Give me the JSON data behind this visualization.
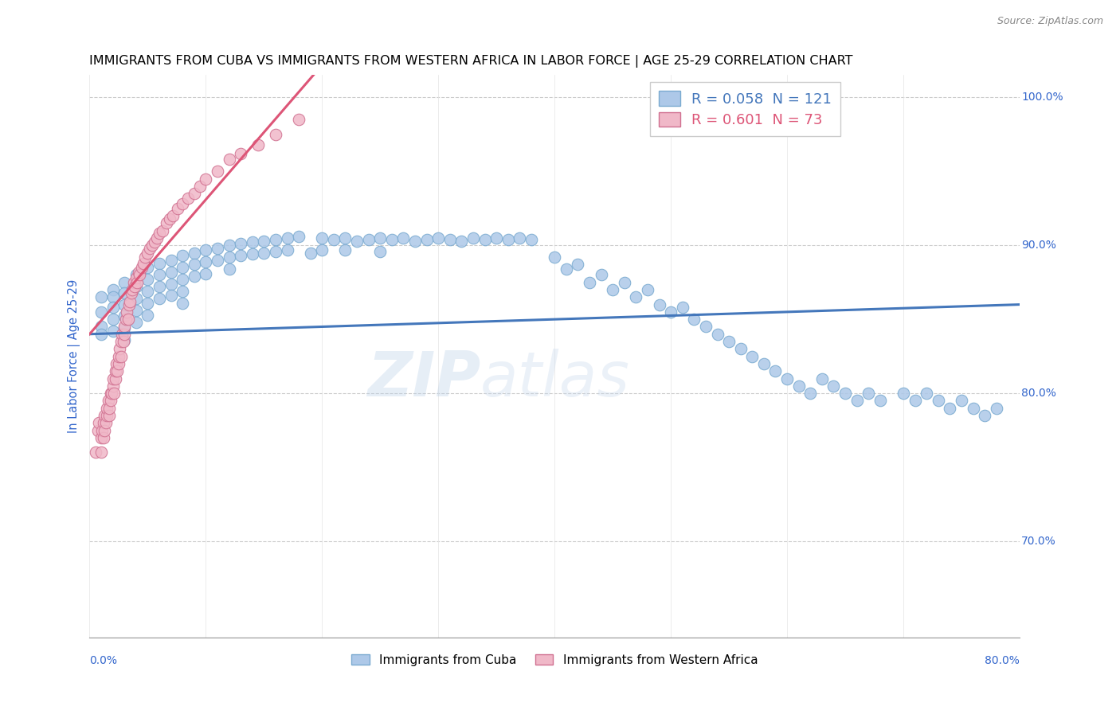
{
  "title": "IMMIGRANTS FROM CUBA VS IMMIGRANTS FROM WESTERN AFRICA IN LABOR FORCE | AGE 25-29 CORRELATION CHART",
  "source": "Source: ZipAtlas.com",
  "ylabel": "In Labor Force | Age 25-29",
  "xlim": [
    0.0,
    0.8
  ],
  "ylim": [
    0.635,
    1.015
  ],
  "cuba_color": "#adc8e8",
  "cuba_edge": "#7aaad0",
  "wa_color": "#f0b8c8",
  "wa_edge": "#d07090",
  "cuba_line_color": "#4477bb",
  "wa_line_color": "#dd5577",
  "cuba_R": 0.058,
  "cuba_N": 121,
  "wa_R": 0.601,
  "wa_N": 73,
  "cuba_scatter_x": [
    0.01,
    0.01,
    0.01,
    0.01,
    0.02,
    0.02,
    0.02,
    0.02,
    0.02,
    0.03,
    0.03,
    0.03,
    0.03,
    0.03,
    0.03,
    0.04,
    0.04,
    0.04,
    0.04,
    0.04,
    0.05,
    0.05,
    0.05,
    0.05,
    0.05,
    0.06,
    0.06,
    0.06,
    0.06,
    0.07,
    0.07,
    0.07,
    0.07,
    0.08,
    0.08,
    0.08,
    0.08,
    0.08,
    0.09,
    0.09,
    0.09,
    0.1,
    0.1,
    0.1,
    0.11,
    0.11,
    0.12,
    0.12,
    0.12,
    0.13,
    0.13,
    0.14,
    0.14,
    0.15,
    0.15,
    0.16,
    0.16,
    0.17,
    0.17,
    0.18,
    0.19,
    0.2,
    0.2,
    0.21,
    0.22,
    0.22,
    0.23,
    0.24,
    0.25,
    0.25,
    0.26,
    0.27,
    0.28,
    0.29,
    0.3,
    0.31,
    0.32,
    0.33,
    0.34,
    0.35,
    0.36,
    0.37,
    0.38,
    0.4,
    0.41,
    0.42,
    0.43,
    0.44,
    0.45,
    0.46,
    0.47,
    0.48,
    0.49,
    0.5,
    0.51,
    0.52,
    0.53,
    0.54,
    0.55,
    0.56,
    0.57,
    0.58,
    0.59,
    0.6,
    0.61,
    0.62,
    0.63,
    0.64,
    0.65,
    0.66,
    0.67,
    0.68,
    0.7,
    0.71,
    0.72,
    0.73,
    0.74,
    0.75,
    0.76,
    0.77,
    0.78
  ],
  "cuba_scatter_y": [
    0.865,
    0.855,
    0.845,
    0.84,
    0.87,
    0.865,
    0.858,
    0.85,
    0.842,
    0.875,
    0.868,
    0.86,
    0.852,
    0.844,
    0.836,
    0.88,
    0.872,
    0.864,
    0.856,
    0.848,
    0.885,
    0.877,
    0.869,
    0.861,
    0.853,
    0.888,
    0.88,
    0.872,
    0.864,
    0.89,
    0.882,
    0.874,
    0.866,
    0.893,
    0.885,
    0.877,
    0.869,
    0.861,
    0.895,
    0.887,
    0.879,
    0.897,
    0.889,
    0.881,
    0.898,
    0.89,
    0.9,
    0.892,
    0.884,
    0.901,
    0.893,
    0.902,
    0.894,
    0.903,
    0.895,
    0.904,
    0.896,
    0.905,
    0.897,
    0.906,
    0.895,
    0.905,
    0.897,
    0.904,
    0.905,
    0.897,
    0.903,
    0.904,
    0.905,
    0.896,
    0.904,
    0.905,
    0.903,
    0.904,
    0.905,
    0.904,
    0.903,
    0.905,
    0.904,
    0.905,
    0.904,
    0.905,
    0.904,
    0.892,
    0.884,
    0.887,
    0.875,
    0.88,
    0.87,
    0.875,
    0.865,
    0.87,
    0.86,
    0.855,
    0.858,
    0.85,
    0.845,
    0.84,
    0.835,
    0.83,
    0.825,
    0.82,
    0.815,
    0.81,
    0.805,
    0.8,
    0.81,
    0.805,
    0.8,
    0.795,
    0.8,
    0.795,
    0.8,
    0.795,
    0.8,
    0.795,
    0.79,
    0.795,
    0.79,
    0.785,
    0.79
  ],
  "wa_scatter_x": [
    0.005,
    0.007,
    0.008,
    0.01,
    0.01,
    0.011,
    0.012,
    0.012,
    0.013,
    0.013,
    0.014,
    0.015,
    0.015,
    0.016,
    0.017,
    0.017,
    0.018,
    0.018,
    0.019,
    0.02,
    0.02,
    0.021,
    0.022,
    0.022,
    0.023,
    0.024,
    0.025,
    0.025,
    0.026,
    0.027,
    0.027,
    0.028,
    0.029,
    0.03,
    0.03,
    0.031,
    0.032,
    0.033,
    0.034,
    0.035,
    0.036,
    0.037,
    0.038,
    0.039,
    0.04,
    0.041,
    0.042,
    0.043,
    0.045,
    0.046,
    0.048,
    0.05,
    0.052,
    0.054,
    0.056,
    0.058,
    0.06,
    0.063,
    0.066,
    0.069,
    0.072,
    0.076,
    0.08,
    0.085,
    0.09,
    0.095,
    0.1,
    0.11,
    0.12,
    0.13,
    0.145,
    0.16,
    0.18
  ],
  "wa_scatter_y": [
    0.76,
    0.775,
    0.78,
    0.76,
    0.77,
    0.775,
    0.78,
    0.77,
    0.775,
    0.785,
    0.78,
    0.785,
    0.79,
    0.795,
    0.785,
    0.79,
    0.8,
    0.795,
    0.8,
    0.805,
    0.81,
    0.8,
    0.81,
    0.815,
    0.82,
    0.815,
    0.82,
    0.825,
    0.83,
    0.825,
    0.835,
    0.84,
    0.835,
    0.84,
    0.845,
    0.85,
    0.855,
    0.85,
    0.86,
    0.862,
    0.868,
    0.87,
    0.875,
    0.872,
    0.878,
    0.875,
    0.882,
    0.88,
    0.885,
    0.888,
    0.892,
    0.895,
    0.898,
    0.9,
    0.902,
    0.905,
    0.908,
    0.91,
    0.915,
    0.918,
    0.92,
    0.925,
    0.928,
    0.932,
    0.935,
    0.94,
    0.945,
    0.95,
    0.958,
    0.962,
    0.968,
    0.975,
    0.985
  ],
  "wa_trend_start_x": 0.0,
  "wa_trend_end_x": 0.22,
  "cuba_trend_start_x": 0.0,
  "cuba_trend_end_x": 0.8
}
